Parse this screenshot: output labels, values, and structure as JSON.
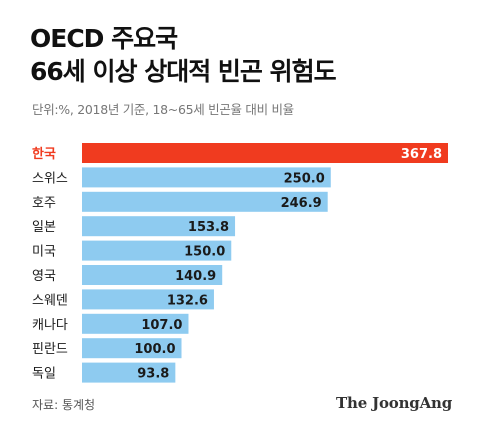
{
  "title_lines": [
    "OECD 주요국",
    "66세 이상 상대적 빈곤 위험도"
  ],
  "subtitle": "단위:%, 2018년 기준, 18~65세 빈곤율 대비 비율",
  "source": "자료: 통계청",
  "brand": "The JoongAng",
  "colors": {
    "highlight": "#f03b1f",
    "bar": "#8ecbf0",
    "highlight_text": "#f03b1f",
    "label_text": "#1a1a1a"
  },
  "chart_data": {
    "type": "bar",
    "orientation": "horizontal",
    "title": "OECD 주요국 66세 이상 상대적 빈곤 위험도",
    "subtitle": "단위:%, 2018년 기준, 18~65세 빈곤율 대비 비율",
    "categories": [
      "한국",
      "스위스",
      "호주",
      "일본",
      "미국",
      "영국",
      "스웨덴",
      "캐나다",
      "핀란드",
      "독일"
    ],
    "values": [
      367.8,
      250.0,
      246.9,
      153.8,
      150.0,
      140.9,
      132.6,
      107.0,
      100.0,
      93.8
    ],
    "value_labels": [
      "367.8",
      "250.0",
      "246.9",
      "153.8",
      "150.0",
      "140.9",
      "132.6",
      "107.0",
      "100.0",
      "93.8"
    ],
    "highlight_category": "한국",
    "xlim": [
      0,
      367.8
    ],
    "grid": false,
    "legend": "none"
  }
}
